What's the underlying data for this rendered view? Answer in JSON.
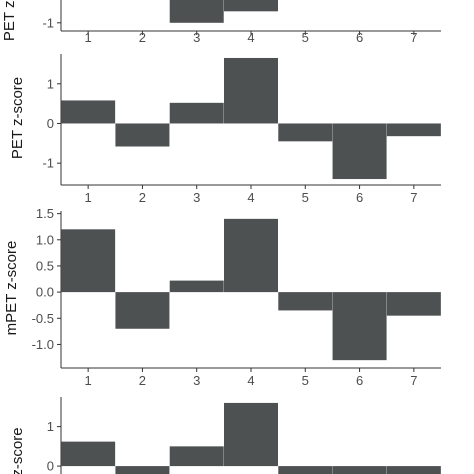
{
  "bar_color": "#4d5152",
  "chart_data": [
    {
      "type": "bar",
      "title": "",
      "xlabel": "",
      "ylabel": "PET z-score",
      "categories": [
        "1",
        "2",
        "3",
        "4",
        "5",
        "6",
        "7"
      ],
      "values": [
        null,
        null,
        -1.0,
        -0.65,
        null,
        null,
        null
      ],
      "ylim": [
        -1.25,
        0
      ],
      "yticks": [
        -1
      ],
      "ytick_labels": [
        "-1"
      ],
      "grid": false,
      "note_partial": "top of chart is cropped; only bottom visible"
    },
    {
      "type": "bar",
      "title": "",
      "xlabel": "",
      "ylabel": "PET z-score",
      "categories": [
        "1",
        "2",
        "3",
        "4",
        "5",
        "6",
        "7"
      ],
      "values": [
        0.58,
        -0.58,
        0.52,
        1.65,
        -0.45,
        -1.4,
        -0.32
      ],
      "ylim": [
        -1.55,
        1.75
      ],
      "yticks": [
        1,
        0,
        -1
      ],
      "ytick_labels": [
        "1",
        "0",
        "-1"
      ],
      "grid": false
    },
    {
      "type": "bar",
      "title": "",
      "xlabel": "",
      "ylabel": "mPET z-score",
      "categories": [
        "1",
        "2",
        "3",
        "4",
        "5",
        "6",
        "7"
      ],
      "values": [
        1.2,
        -0.7,
        0.22,
        1.4,
        -0.35,
        -1.3,
        -0.45
      ],
      "ylim": [
        -1.45,
        1.55
      ],
      "yticks": [
        1.5,
        1.0,
        0.5,
        0.0,
        -0.5,
        -1.0
      ],
      "ytick_labels": [
        "1.5",
        "1.0",
        "0.5",
        "0.0",
        "-0.5",
        "-1.0"
      ],
      "grid": false
    },
    {
      "type": "bar",
      "title": "",
      "xlabel": "",
      "ylabel": "z-score",
      "categories": [
        "1",
        "2",
        "3",
        "4",
        "5",
        "6",
        "7"
      ],
      "values": [
        0.62,
        -0.2,
        0.5,
        1.6,
        -0.2,
        -0.2,
        -0.2
      ],
      "ylim": [
        -0.2,
        1.75
      ],
      "yticks": [
        1,
        0
      ],
      "ytick_labels": [
        "1",
        "0"
      ],
      "grid": false,
      "note_partial": "bottom of chart is cropped"
    }
  ]
}
